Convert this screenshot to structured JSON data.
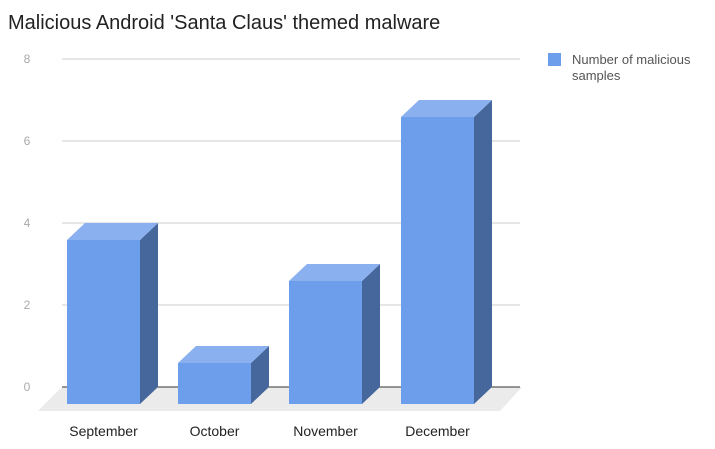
{
  "chart_data": {
    "type": "bar",
    "title": "Malicious Android 'Santa Claus' themed malware",
    "categories": [
      "September",
      "October",
      "November",
      "December"
    ],
    "series": [
      {
        "name": "Number of malicious samples",
        "values": [
          4,
          1,
          3,
          7
        ]
      }
    ],
    "ylim": [
      0,
      8
    ],
    "yticks": [
      0,
      2,
      4,
      6,
      8
    ],
    "grid": true,
    "legend": "right",
    "style": "3d",
    "colors": {
      "front": "#6d9eeb",
      "top": "#8ab0f0",
      "side": "#45679c"
    }
  }
}
